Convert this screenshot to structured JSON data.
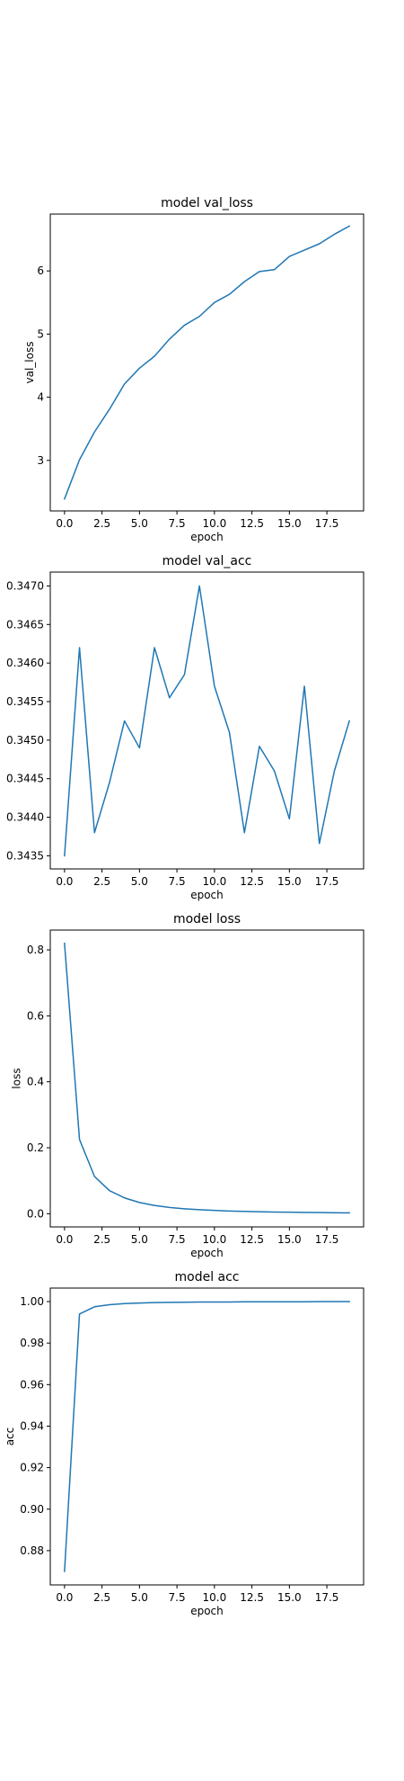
{
  "chart_data": [
    {
      "type": "line",
      "title": "model val_loss",
      "xlabel": "epoch",
      "ylabel": "val_loss",
      "xlim": [
        -0.95,
        19.95
      ],
      "ylim": [
        2.2,
        6.9
      ],
      "xticks": [
        0.0,
        2.5,
        5.0,
        7.5,
        10.0,
        12.5,
        15.0,
        17.5
      ],
      "xtick_labels": [
        "0.0",
        "2.5",
        "5.0",
        "7.5",
        "10.0",
        "12.5",
        "15.0",
        "17.5"
      ],
      "yticks": [
        3,
        4,
        5,
        6
      ],
      "ytick_labels": [
        "3",
        "4",
        "5",
        "6"
      ],
      "grid": false,
      "color": "#1f77b4",
      "x": [
        0,
        1,
        2,
        3,
        4,
        5,
        6,
        7,
        8,
        9,
        10,
        11,
        12,
        13,
        14,
        15,
        16,
        17,
        18,
        19
      ],
      "y": [
        2.39,
        3.01,
        3.45,
        3.81,
        4.21,
        4.46,
        4.65,
        4.92,
        5.14,
        5.28,
        5.5,
        5.63,
        5.83,
        5.99,
        6.02,
        6.23,
        6.33,
        6.43,
        6.58,
        6.71
      ]
    },
    {
      "type": "line",
      "title": "model val_acc",
      "xlabel": "epoch",
      "ylabel": "",
      "xlim": [
        -0.95,
        19.95
      ],
      "ylim": [
        0.34333,
        0.34718
      ],
      "xticks": [
        0.0,
        2.5,
        5.0,
        7.5,
        10.0,
        12.5,
        15.0,
        17.5
      ],
      "xtick_labels": [
        "0.0",
        "2.5",
        "5.0",
        "7.5",
        "10.0",
        "12.5",
        "15.0",
        "17.5"
      ],
      "yticks": [
        0.3435,
        0.344,
        0.3445,
        0.345,
        0.3455,
        0.346,
        0.3465,
        0.347
      ],
      "ytick_labels": [
        "0.3435",
        "0.3440",
        "0.3445",
        "0.3450",
        "0.3455",
        "0.3460",
        "0.3465",
        "0.3470"
      ],
      "grid": false,
      "color": "#1f77b4",
      "x": [
        0,
        1,
        2,
        3,
        4,
        5,
        6,
        7,
        8,
        9,
        10,
        11,
        12,
        13,
        14,
        15,
        16,
        17,
        18,
        19
      ],
      "y": [
        0.3435,
        0.3462,
        0.3438,
        0.34445,
        0.34525,
        0.3449,
        0.3462,
        0.34555,
        0.34585,
        0.347,
        0.3457,
        0.3451,
        0.3438,
        0.34492,
        0.3446,
        0.34398,
        0.3457,
        0.34366,
        0.3446,
        0.34525
      ]
    },
    {
      "type": "line",
      "title": "model loss",
      "xlabel": "epoch",
      "ylabel": "loss",
      "xlim": [
        -0.95,
        19.95
      ],
      "ylim": [
        -0.04,
        0.86
      ],
      "xticks": [
        0.0,
        2.5,
        5.0,
        7.5,
        10.0,
        12.5,
        15.0,
        17.5
      ],
      "xtick_labels": [
        "0.0",
        "2.5",
        "5.0",
        "7.5",
        "10.0",
        "12.5",
        "15.0",
        "17.5"
      ],
      "yticks": [
        0.0,
        0.2,
        0.4,
        0.6,
        0.8
      ],
      "ytick_labels": [
        "0.0",
        "0.2",
        "0.4",
        "0.6",
        "0.8"
      ],
      "grid": false,
      "color": "#1f77b4",
      "x": [
        0,
        1,
        2,
        3,
        4,
        5,
        6,
        7,
        8,
        9,
        10,
        11,
        12,
        13,
        14,
        15,
        16,
        17,
        18,
        19
      ],
      "y": [
        0.82,
        0.225,
        0.113,
        0.07,
        0.048,
        0.034,
        0.025,
        0.019,
        0.015,
        0.012,
        0.01,
        0.008,
        0.007,
        0.006,
        0.005,
        0.0045,
        0.004,
        0.0035,
        0.003,
        0.0025
      ]
    },
    {
      "type": "line",
      "title": "model acc",
      "xlabel": "epoch",
      "ylabel": "acc",
      "xlim": [
        -0.95,
        19.95
      ],
      "ylim": [
        0.8635,
        1.0065
      ],
      "xticks": [
        0.0,
        2.5,
        5.0,
        7.5,
        10.0,
        12.5,
        15.0,
        17.5
      ],
      "xtick_labels": [
        "0.0",
        "2.5",
        "5.0",
        "7.5",
        "10.0",
        "12.5",
        "15.0",
        "17.5"
      ],
      "yticks": [
        0.88,
        0.9,
        0.92,
        0.94,
        0.96,
        0.98,
        1.0
      ],
      "ytick_labels": [
        "0.88",
        "0.90",
        "0.92",
        "0.94",
        "0.96",
        "0.98",
        "1.00"
      ],
      "grid": false,
      "color": "#1f77b4",
      "x": [
        0,
        1,
        2,
        3,
        4,
        5,
        6,
        7,
        8,
        9,
        10,
        11,
        12,
        13,
        14,
        15,
        16,
        17,
        18,
        19
      ],
      "y": [
        0.87,
        0.994,
        0.9975,
        0.9985,
        0.999,
        0.9993,
        0.9995,
        0.9996,
        0.9997,
        0.9998,
        0.9998,
        0.9998,
        0.9999,
        0.9999,
        0.9999,
        0.9999,
        0.9999,
        1.0,
        1.0,
        1.0
      ]
    }
  ]
}
